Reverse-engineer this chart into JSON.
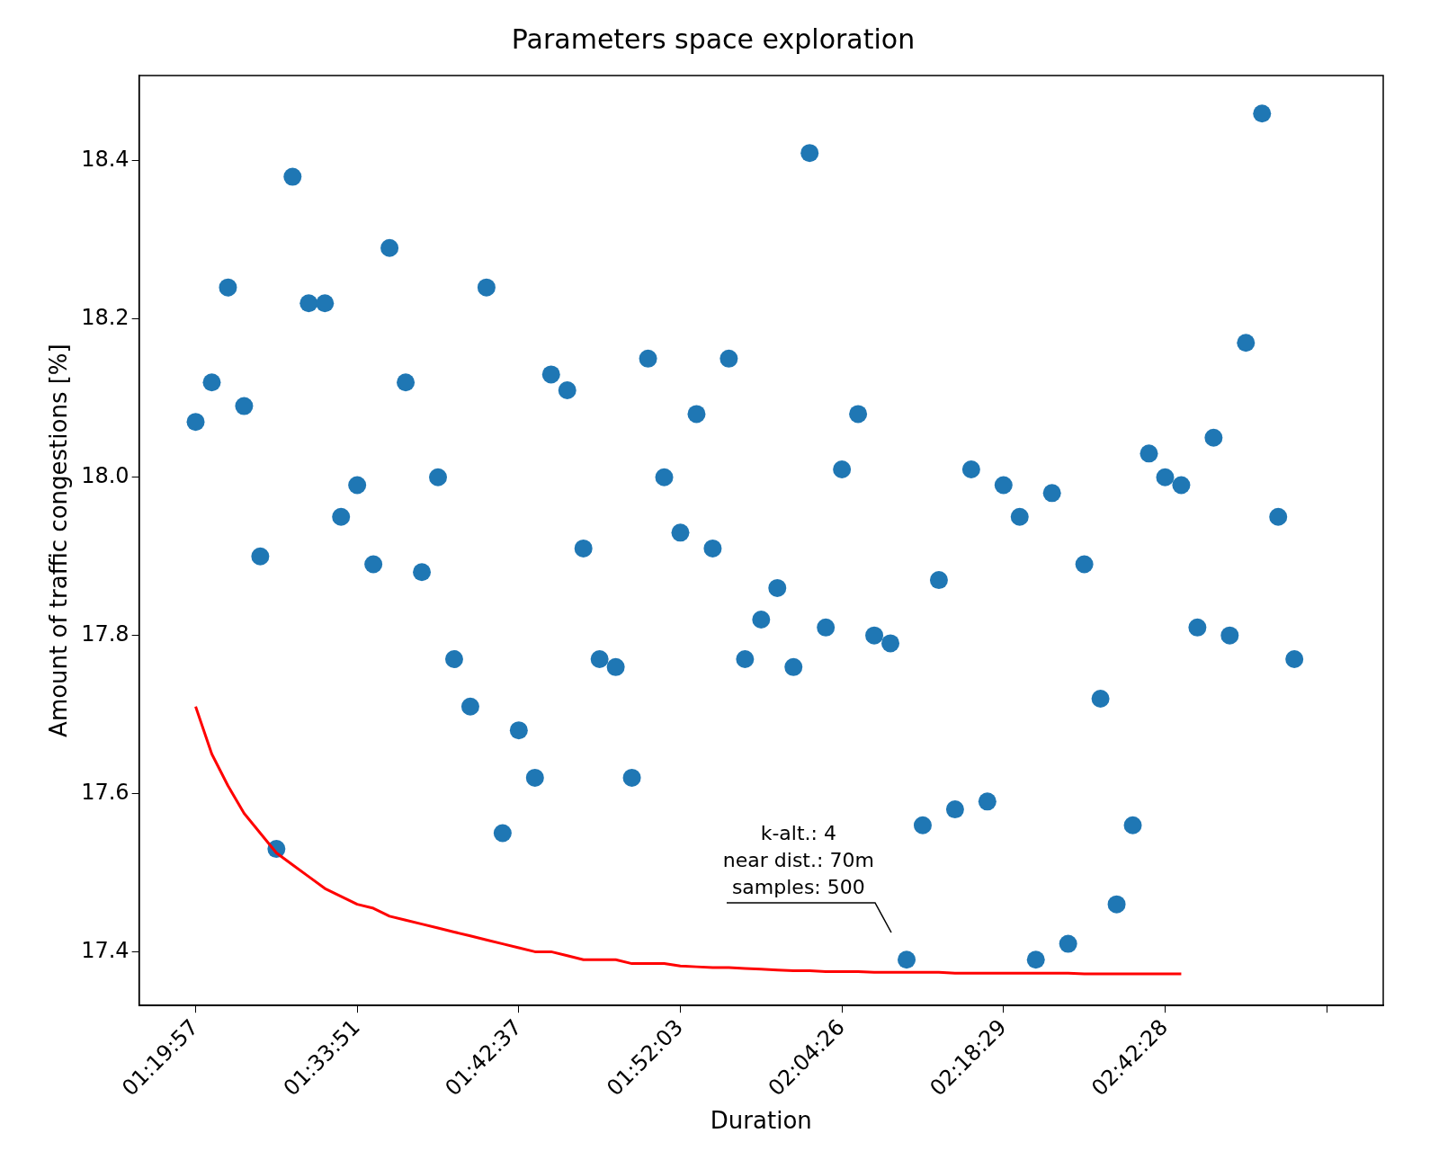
{
  "chart_data": {
    "type": "scatter",
    "title": "Parameters space exploration",
    "xlabel": "Duration",
    "ylabel": "Amount of traffic congestions [%]",
    "marker": "circle",
    "grid": false,
    "ylim": [
      17.332,
      18.508
    ],
    "categories": [
      "01:19:57",
      null,
      null,
      null,
      null,
      null,
      null,
      null,
      null,
      null,
      "01:33:51",
      null,
      null,
      null,
      null,
      null,
      null,
      null,
      null,
      null,
      "01:42:37",
      null,
      null,
      null,
      null,
      null,
      null,
      null,
      null,
      null,
      "01:52:03",
      null,
      null,
      null,
      null,
      null,
      null,
      null,
      null,
      null,
      "02:04:26",
      null,
      null,
      null,
      null,
      null,
      null,
      null,
      null,
      null,
      "02:18:29",
      null,
      null,
      null,
      null,
      null,
      null,
      null,
      null,
      null,
      "02:42:28",
      null,
      null,
      null,
      null,
      null,
      null,
      null,
      null,
      null,
      null
    ],
    "yticks": [
      17.4,
      17.6,
      17.8,
      {
        "value": 18,
        "label": "18.0"
      },
      18.2,
      18.4
    ],
    "annotations": [
      "k-alt.: 4\nnear dist.: 70m\nsamples: 500"
    ],
    "series": [
      {
        "color": "#1f77b4",
        "values": [
          18.07,
          18.12,
          18.24,
          18.09,
          17.9,
          17.53,
          18.38,
          18.22,
          18.22,
          17.95,
          17.99,
          17.89,
          18.29,
          18.12,
          17.88,
          18.0,
          17.77,
          17.71,
          18.24,
          17.55,
          17.68,
          17.62,
          18.13,
          18.11,
          17.91,
          17.77,
          17.76,
          17.62,
          18.15,
          18.0,
          17.93,
          18.08,
          17.91,
          18.15,
          17.77,
          17.82,
          17.86,
          17.76,
          18.41,
          17.81,
          18.01,
          18.08,
          17.8,
          17.79,
          17.39,
          17.56,
          17.87,
          17.58,
          18.01,
          17.59,
          17.99,
          17.95,
          17.39,
          17.98,
          17.41,
          17.89,
          17.72,
          17.46,
          17.56,
          18.03,
          18.0,
          17.99,
          17.81,
          18.05,
          17.8,
          18.17,
          18.46,
          17.95,
          17.77,
          null,
          null
        ]
      },
      {
        "type": "line",
        "color": "#ff0000",
        "marker": "none",
        "values": [
          17.71,
          17.65,
          17.61,
          17.575,
          17.55,
          17.525,
          17.51,
          17.495,
          17.48,
          17.47,
          17.46,
          17.455,
          17.445,
          17.44,
          17.435,
          17.43,
          17.425,
          17.42,
          17.415,
          17.41,
          17.405,
          17.4,
          17.4,
          17.395,
          17.39,
          17.39,
          17.39,
          17.385,
          17.385,
          17.385,
          17.382,
          17.381,
          17.38,
          17.38,
          17.379,
          17.378,
          17.377,
          17.376,
          17.376,
          17.375,
          17.375,
          17.375,
          17.374,
          17.374,
          17.374,
          17.374,
          17.374,
          17.373,
          17.373,
          17.373,
          17.373,
          17.373,
          17.373,
          17.373,
          17.373,
          17.372,
          17.372,
          17.372,
          17.372,
          17.372,
          17.372,
          17.372,
          null,
          null,
          null,
          null,
          null,
          null,
          null,
          null,
          null
        ]
      }
    ]
  }
}
